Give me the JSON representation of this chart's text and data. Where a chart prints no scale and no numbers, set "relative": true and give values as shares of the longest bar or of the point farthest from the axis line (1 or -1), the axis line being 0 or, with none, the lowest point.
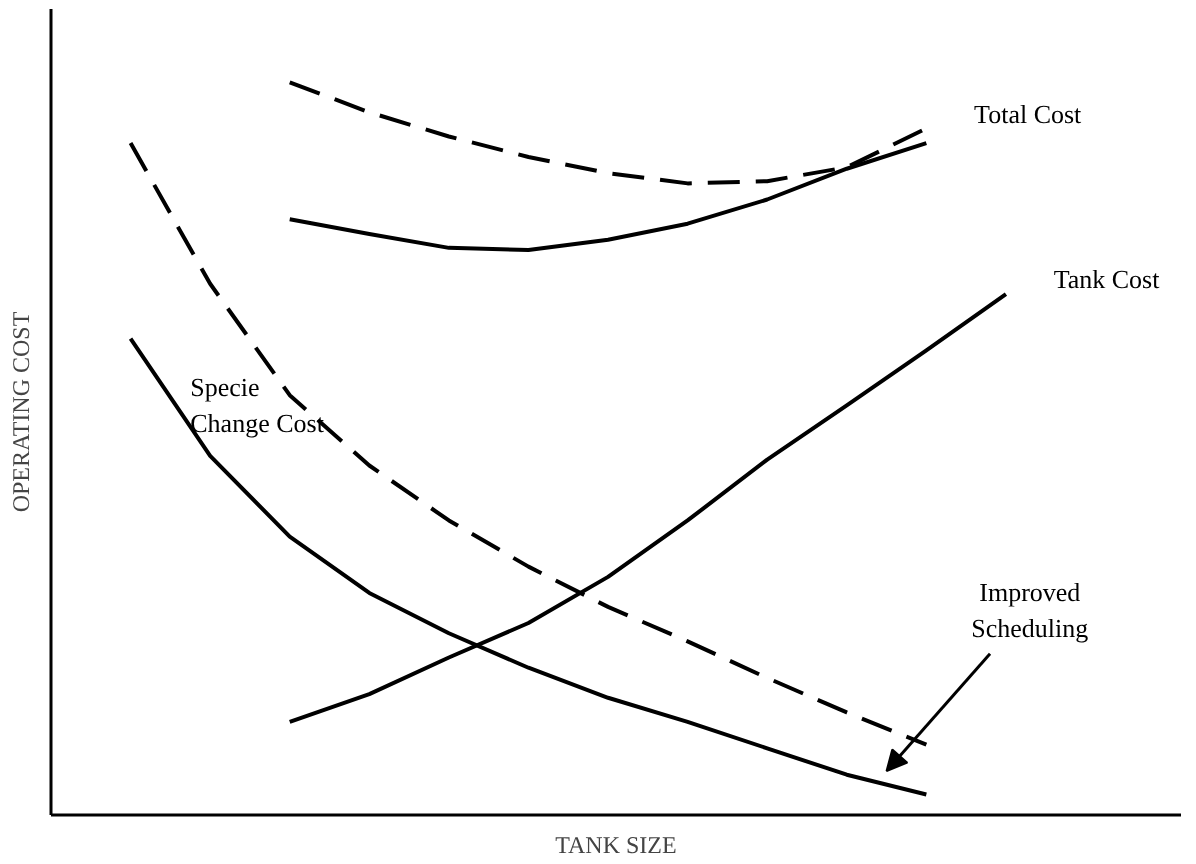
{
  "chart_data": {
    "type": "line",
    "relative": true,
    "xlabel": "TANK SIZE",
    "ylabel": "OPERATING COST",
    "categories": [
      null,
      null,
      null,
      null,
      null,
      null,
      null,
      null,
      null,
      null,
      null,
      null,
      null
    ],
    "series": [
      {
        "name": "Total Cost",
        "color": "#000000",
        "line_style": "dashed",
        "values": [
          null,
          null,
          1.0,
          0.959,
          0.926,
          0.898,
          0.876,
          0.862,
          0.865,
          0.884,
          0.937,
          null,
          null
        ]
      },
      {
        "color": "#000000",
        "line_style": "solid",
        "values": [
          null,
          null,
          0.813,
          0.793,
          0.774,
          0.771,
          0.785,
          0.807,
          0.84,
          0.882,
          0.917,
          null,
          null
        ]
      },
      {
        "name": "Tank Cost",
        "color": "#000000",
        "line_style": "solid",
        "values": [
          null,
          null,
          0.127,
          0.165,
          0.215,
          0.262,
          0.325,
          0.402,
          0.485,
          0.559,
          0.634,
          0.711,
          null
        ]
      },
      {
        "color": "#000000",
        "line_style": "dashed",
        "values": [
          0.917,
          0.725,
          0.573,
          0.477,
          0.402,
          0.339,
          0.284,
          0.237,
          0.187,
          0.14,
          0.096,
          null,
          null
        ]
      },
      {
        "color": "#000000",
        "line_style": "solid",
        "values": [
          0.65,
          0.49,
          0.38,
          0.303,
          0.248,
          0.201,
          0.16,
          0.127,
          0.091,
          0.055,
          0.028,
          null,
          null
        ]
      }
    ],
    "annotations": [
      "Specie\nChange Cost",
      "Improved\nScheduling"
    ],
    "grid": false
  }
}
